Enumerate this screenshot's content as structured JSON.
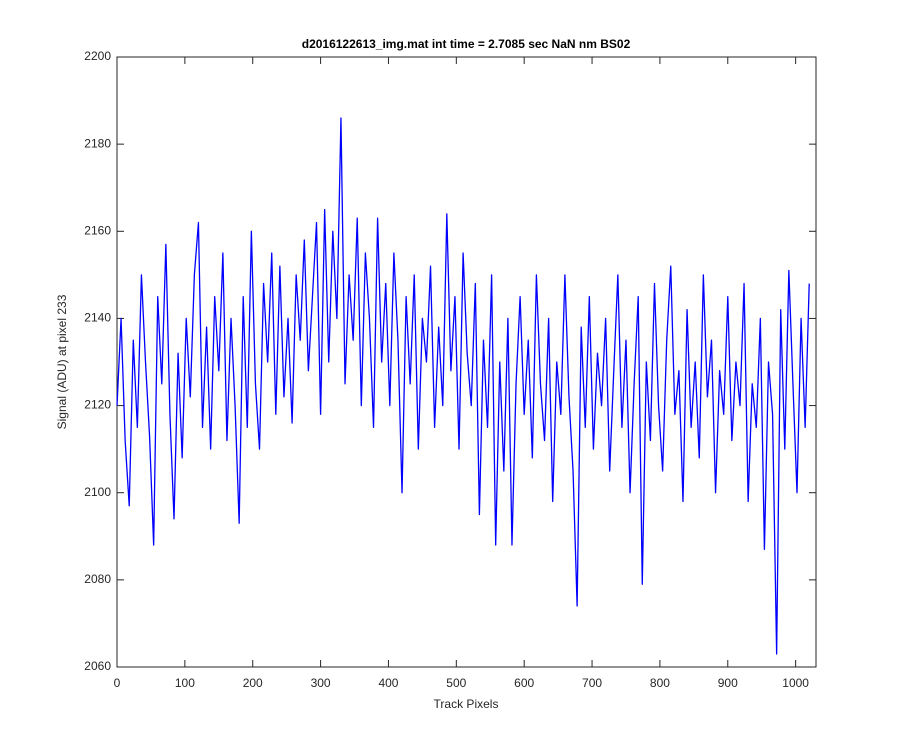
{
  "chart_data": {
    "type": "line",
    "title": "d2016122613_img.mat int time = 2.7085 sec  NaN nm BS02",
    "x_label": "Track Pixels",
    "y_label": "Signal (ADU) at pixel 233",
    "xlim": [
      0,
      1030
    ],
    "ylim": [
      2060,
      2200
    ],
    "xticks": [
      0,
      100,
      200,
      300,
      400,
      500,
      600,
      700,
      800,
      900,
      1000
    ],
    "yticks": [
      2060,
      2080,
      2100,
      2120,
      2140,
      2160,
      2180,
      2200
    ],
    "grid": false,
    "x": [
      0,
      6,
      12,
      18,
      24,
      30,
      36,
      42,
      48,
      54,
      60,
      66,
      72,
      78,
      84,
      90,
      96,
      102,
      108,
      114,
      120,
      126,
      132,
      138,
      144,
      150,
      156,
      162,
      168,
      174,
      180,
      186,
      192,
      198,
      204,
      210,
      216,
      222,
      228,
      234,
      240,
      246,
      252,
      258,
      264,
      270,
      276,
      282,
      288,
      294,
      300,
      306,
      312,
      318,
      324,
      330,
      336,
      342,
      348,
      354,
      360,
      366,
      372,
      378,
      384,
      390,
      396,
      402,
      408,
      414,
      420,
      426,
      432,
      438,
      444,
      450,
      456,
      462,
      468,
      474,
      480,
      486,
      492,
      498,
      504,
      510,
      516,
      522,
      528,
      534,
      540,
      546,
      552,
      558,
      564,
      570,
      576,
      582,
      588,
      594,
      600,
      606,
      612,
      618,
      624,
      630,
      636,
      642,
      648,
      654,
      660,
      666,
      672,
      678,
      684,
      690,
      696,
      702,
      708,
      714,
      720,
      726,
      732,
      738,
      744,
      750,
      756,
      762,
      768,
      774,
      780,
      786,
      792,
      798,
      804,
      810,
      816,
      822,
      828,
      834,
      840,
      846,
      852,
      858,
      864,
      870,
      876,
      882,
      888,
      894,
      900,
      906,
      912,
      918,
      924,
      930,
      936,
      942,
      948,
      954,
      960,
      966,
      972,
      978,
      984,
      990,
      996,
      1002,
      1008,
      1014,
      1020
    ],
    "series": [
      {
        "name": "signal",
        "color": "#0000ff",
        "values": [
          2120,
          2140,
          2112,
          2097,
          2135,
          2115,
          2150,
          2130,
          2113,
          2088,
          2145,
          2125,
          2157,
          2118,
          2094,
          2132,
          2108,
          2140,
          2122,
          2150,
          2162,
          2115,
          2138,
          2110,
          2145,
          2128,
          2155,
          2112,
          2140,
          2120,
          2093,
          2145,
          2115,
          2160,
          2125,
          2110,
          2148,
          2130,
          2155,
          2118,
          2152,
          2122,
          2140,
          2116,
          2150,
          2135,
          2158,
          2128,
          2145,
          2162,
          2118,
          2165,
          2130,
          2160,
          2140,
          2186,
          2125,
          2150,
          2135,
          2163,
          2120,
          2155,
          2140,
          2115,
          2163,
          2130,
          2148,
          2120,
          2155,
          2135,
          2100,
          2145,
          2125,
          2150,
          2110,
          2140,
          2130,
          2152,
          2115,
          2138,
          2120,
          2164,
          2128,
          2145,
          2110,
          2155,
          2132,
          2120,
          2148,
          2095,
          2135,
          2115,
          2150,
          2088,
          2130,
          2105,
          2140,
          2088,
          2125,
          2145,
          2118,
          2135,
          2108,
          2150,
          2125,
          2112,
          2140,
          2098,
          2130,
          2118,
          2150,
          2122,
          2105,
          2074,
          2138,
          2115,
          2145,
          2110,
          2132,
          2120,
          2140,
          2105,
          2128,
          2150,
          2115,
          2135,
          2100,
          2125,
          2145,
          2079,
          2130,
          2112,
          2148,
          2120,
          2105,
          2135,
          2152,
          2118,
          2128,
          2098,
          2142,
          2115,
          2130,
          2108,
          2150,
          2122,
          2135,
          2100,
          2128,
          2118,
          2145,
          2112,
          2130,
          2120,
          2148,
          2098,
          2125,
          2115,
          2140,
          2087,
          2130,
          2118,
          2063,
          2142,
          2110,
          2151,
          2125,
          2100,
          2140,
          2115,
          2148
        ]
      }
    ]
  }
}
